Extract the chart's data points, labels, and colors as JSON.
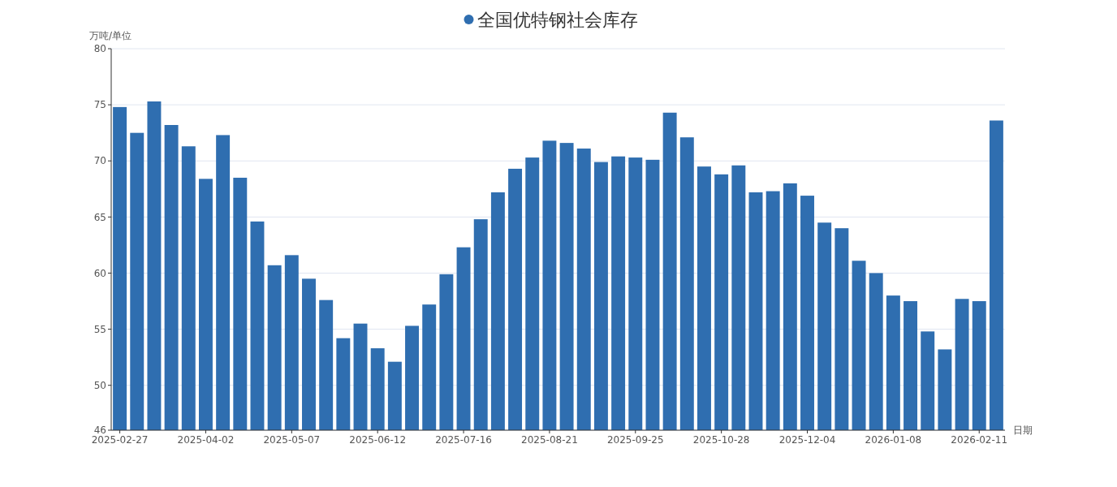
{
  "chart_data": {
    "type": "bar",
    "xlabel": "日期",
    "ylabel": "万吨/单位",
    "categories": [
      "2025-02-27",
      null,
      null,
      null,
      null,
      "2025-04-02",
      null,
      null,
      null,
      null,
      "2025-05-07",
      null,
      null,
      null,
      null,
      "2025-06-12",
      null,
      null,
      null,
      null,
      "2025-07-16",
      null,
      null,
      null,
      null,
      "2025-08-21",
      null,
      null,
      null,
      null,
      "2025-09-25",
      null,
      null,
      null,
      null,
      "2025-10-28",
      null,
      null,
      null,
      null,
      "2025-12-04",
      null,
      null,
      null,
      null,
      "2026-01-08",
      null,
      null,
      null,
      null,
      "2026-02-11",
      null
    ],
    "series": [
      {
        "name": "全国优特钢社会库存",
        "color": "#2f6eb0",
        "values": [
          74.8,
          72.5,
          75.3,
          73.2,
          71.3,
          68.4,
          72.3,
          68.5,
          64.6,
          60.7,
          61.6,
          59.5,
          57.6,
          54.2,
          55.5,
          53.3,
          52.1,
          55.3,
          57.2,
          59.9,
          62.3,
          64.8,
          67.2,
          69.3,
          70.3,
          71.8,
          71.6,
          71.1,
          69.9,
          70.4,
          70.3,
          70.1,
          74.3,
          72.1,
          69.5,
          68.8,
          69.6,
          67.2,
          67.3,
          68.0,
          66.9,
          64.5,
          64.0,
          61.1,
          60.0,
          58.0,
          57.5,
          54.8,
          53.2,
          57.7,
          57.5,
          73.6
        ]
      }
    ],
    "ylim": [
      46,
      80
    ],
    "yticks": [
      46,
      50,
      55,
      60,
      65,
      70,
      75,
      80
    ],
    "grid": "y",
    "legend": "top"
  }
}
